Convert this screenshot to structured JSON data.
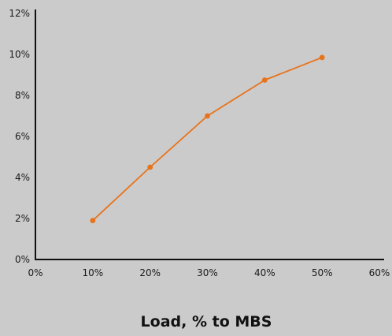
{
  "chart_data": {
    "type": "line",
    "xlabel": "Load, % to MBS",
    "ylabel": "",
    "x_tick_labels": [
      "0%",
      "10%",
      "20%",
      "30%",
      "40%",
      "50%",
      "60%"
    ],
    "y_tick_labels": [
      "0%",
      "2%",
      "4%",
      "6%",
      "8%",
      "10%",
      "12%"
    ],
    "xlim": [
      0,
      60
    ],
    "ylim": [
      0,
      12
    ],
    "grid": false,
    "series": [
      {
        "x": [
          10,
          20,
          30,
          40,
          50
        ],
        "y": [
          1.9,
          4.5,
          7.0,
          8.75,
          9.85
        ],
        "color": "#e8731a"
      }
    ]
  },
  "colors": {
    "background": "#cbcbcb",
    "axis": "#111111",
    "series": "#e8731a"
  }
}
